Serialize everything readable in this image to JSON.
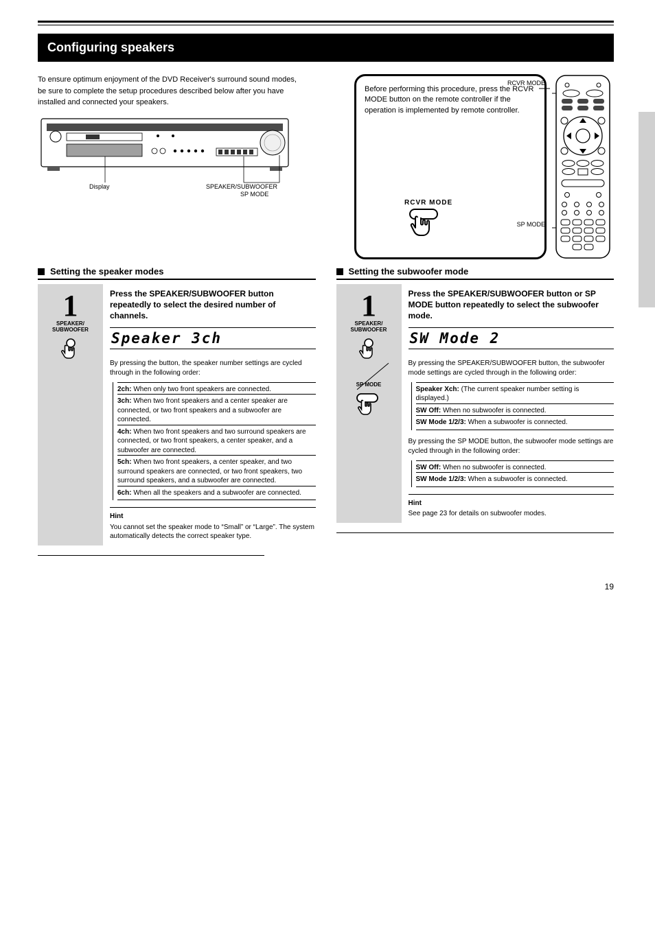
{
  "colors": {
    "panel_gray": "#d6d6d6",
    "text": "#000000",
    "bg": "#ffffff"
  },
  "top": {
    "section_title": "Configuring speakers",
    "intro": "To ensure optimum enjoyment of the DVD Receiver's surround sound modes, be sure to complete the setup procedures described below after you have installed and connected your speakers.",
    "device_labels": {
      "display": "Display",
      "speaker_sub": "SPEAKER/SUBWOOFER",
      "sp_mode": "SP MODE"
    },
    "remote_callout": {
      "line": "Before performing this procedure, press the RCVR MODE button on the remote controller if the operation is implemented by remote controller.",
      "button_label": "RCVR MODE"
    },
    "remote_leaders": {
      "rcvr_mode": "RCVR MODE",
      "sp_mode": "SP MODE"
    }
  },
  "left_col": {
    "heading": "Setting the speaker modes",
    "step_num": "1",
    "step_instr": "Press the SPEAKER/SUBWOOFER button repeatedly to select the desired number of channels.",
    "lcd": "Speaker 3ch",
    "lead": "By pressing the button, the speaker number settings are cycled through in the following order:",
    "items": [
      {
        "t": "2ch:",
        "d": "When only two front speakers are connected."
      },
      {
        "t": "3ch:",
        "d": "When two front speakers and a center speaker are connected, or two front speakers and a subwoofer are connected."
      },
      {
        "t": "4ch:",
        "d": "When two front speakers and two surround speakers are connected, or two front speakers, a center speaker, and a subwoofer are connected."
      },
      {
        "t": "5ch:",
        "d": "When two front speakers, a center speaker, and two surround speakers are connected, or two front speakers, two surround speakers, and a subwoofer are connected."
      },
      {
        "t": "6ch:",
        "d": "When all the speakers and a subwoofer are connected."
      }
    ],
    "hint_title": "Hint",
    "hint": "You cannot set the speaker mode to “Small” or “Large”. The system automatically detects the correct speaker type."
  },
  "right_col": {
    "heading": "Setting the subwoofer mode",
    "step_num": "1",
    "btn_labels": {
      "a": "SPEAKER/\nSUBWOOFER",
      "b": "SP MODE"
    },
    "step_instr": "Press the SPEAKER/SUBWOOFER button or SP MODE button repeatedly to select the subwoofer mode.",
    "lcd": "SW Mode 2",
    "lead1": "By pressing the SPEAKER/SUBWOOFER button, the subwoofer mode settings are cycled through in the following order:",
    "seq1": [
      {
        "t": "Speaker Xch:",
        "d": "(The current speaker number setting is displayed.)"
      },
      {
        "t": "SW Off:",
        "d": "When no subwoofer is connected."
      },
      {
        "t": "SW Mode 1/2/3:",
        "d": "When a subwoofer is connected."
      }
    ],
    "lead2": "By pressing the SP MODE button, the subwoofer mode settings are cycled through in the following order:",
    "seq2": [
      {
        "t": "SW Off:",
        "d": "When no subwoofer is connected."
      },
      {
        "t": "SW Mode 1/2/3:",
        "d": "When a subwoofer is connected."
      }
    ],
    "hint_title": "Hint",
    "hint": "See page 23 for details on subwoofer modes."
  },
  "page_no": "19"
}
